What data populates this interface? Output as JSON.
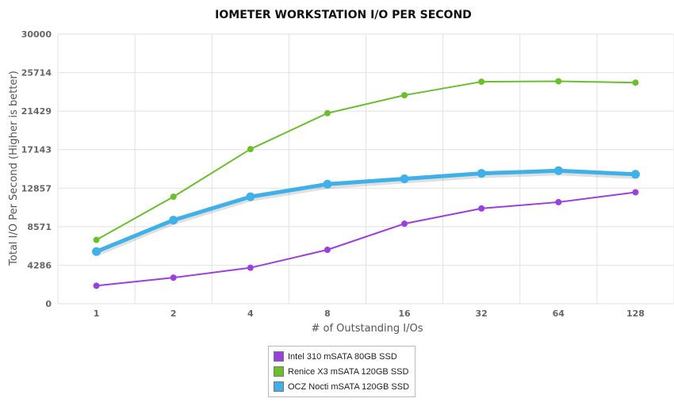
{
  "chart_data": {
    "type": "line",
    "title": "IOMETER WORKSTATION I/O PER SECOND",
    "xlabel": "# of Outstanding I/Os",
    "ylabel": "Total I/O Per Second (Higher is better)",
    "categories": [
      "1",
      "2",
      "4",
      "8",
      "16",
      "32",
      "64",
      "128"
    ],
    "y_ticks": [
      "0",
      "4286",
      "8571",
      "12857",
      "17143",
      "21429",
      "25714",
      "30000"
    ],
    "ylim": [
      0,
      30000
    ],
    "grid": true,
    "legend_position": "bottom-center",
    "series": [
      {
        "name": "Intel 310 mSATA 80GB SSD",
        "color": "#9b3fe0",
        "values": [
          2000,
          2900,
          4000,
          6000,
          8900,
          10600,
          11300,
          12400
        ]
      },
      {
        "name": "Renice X3 mSATA 120GB SSD",
        "color": "#6abf2a",
        "values": [
          7100,
          11900,
          17200,
          21200,
          23200,
          24700,
          24750,
          24600
        ]
      },
      {
        "name": "OCZ Nocti mSATA 120GB SSD",
        "color": "#3fb0e8",
        "values": [
          5800,
          9300,
          11900,
          13300,
          13900,
          14500,
          14800,
          14400
        ]
      }
    ]
  }
}
